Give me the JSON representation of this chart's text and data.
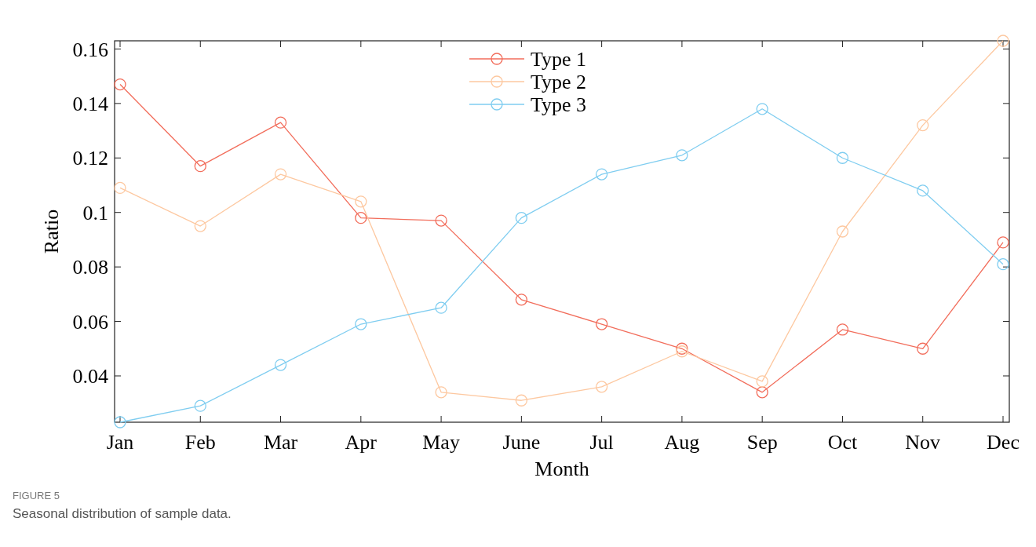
{
  "chart_data": {
    "type": "line",
    "xlabel": "Month",
    "ylabel": "Ratio",
    "categories": [
      "Jan",
      "Feb",
      "Mar",
      "Apr",
      "May",
      "June",
      "Jul",
      "Aug",
      "Sep",
      "Oct",
      "Nov",
      "Dec"
    ],
    "series": [
      {
        "name": "Type 1",
        "color": "#f26d5b",
        "values": [
          0.147,
          0.117,
          0.133,
          0.098,
          0.097,
          0.068,
          0.059,
          0.05,
          0.034,
          0.057,
          0.05,
          0.089
        ]
      },
      {
        "name": "Type 2",
        "color": "#fdc8a0",
        "values": [
          0.109,
          0.095,
          0.114,
          0.104,
          0.034,
          0.031,
          0.036,
          0.049,
          0.038,
          0.093,
          0.132,
          0.163
        ]
      },
      {
        "name": "Type 3",
        "color": "#7fcdf0",
        "values": [
          0.023,
          0.029,
          0.044,
          0.059,
          0.065,
          0.098,
          0.114,
          0.121,
          0.138,
          0.12,
          0.108,
          0.081
        ]
      }
    ],
    "ylim": [
      0.023,
      0.163
    ],
    "yticks": [
      0.04,
      0.06,
      0.08,
      0.1,
      0.12,
      0.14,
      0.16
    ],
    "marker": "circle",
    "line_style": "solid",
    "legend": "top",
    "grid": false,
    "annotations": [
      "FIGURE 5",
      "Seasonal distribution of sample data."
    ]
  }
}
